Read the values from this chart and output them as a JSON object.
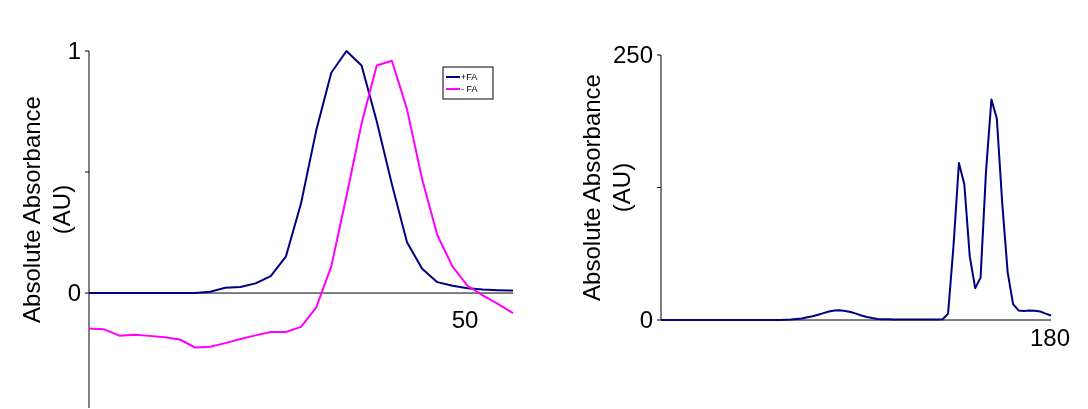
{
  "chart_data": [
    {
      "type": "line",
      "ylabel": "Absolute Absorbance\n(AU)",
      "categories": [
        null,
        null,
        null,
        null,
        null,
        null,
        null,
        null,
        null,
        null,
        null,
        null,
        null,
        null,
        null,
        null,
        null,
        null,
        null,
        null,
        null,
        null,
        null,
        null,
        null,
        null,
        null,
        null,
        null
      ],
      "ylim": [
        -0.475,
        1
      ],
      "yticks": [
        0,
        {
          "value": 0.5,
          "label": null
        },
        1
      ],
      "legend": "top right",
      "annotations": [
        "50"
      ],
      "series": [
        {
          "name": "+FA",
          "color": "#000080",
          "values": [
            0,
            0,
            0,
            0,
            0,
            0,
            0,
            0,
            0.005,
            0.022,
            0.025,
            0.04,
            0.07,
            0.15,
            0.37,
            0.67,
            0.91,
            1.0,
            0.94,
            0.71,
            0.45,
            0.21,
            0.1,
            0.045,
            0.03,
            0.02,
            0.015,
            0.012,
            0.01
          ]
        },
        {
          "name": "- FA",
          "color": "#ff00ff",
          "values": [
            -0.147,
            -0.15,
            -0.176,
            -0.172,
            -0.177,
            -0.183,
            -0.192,
            -0.225,
            -0.222,
            -0.207,
            -0.19,
            -0.175,
            -0.161,
            -0.161,
            -0.14,
            -0.06,
            0.11,
            0.4,
            0.7,
            0.94,
            0.96,
            0.76,
            0.47,
            0.24,
            0.11,
            0.03,
            -0.01,
            -0.045,
            -0.083
          ]
        }
      ]
    },
    {
      "type": "line",
      "ylabel": "Absolute Absorbance\n(AU)",
      "categories": [
        null,
        null,
        null,
        null,
        null,
        null,
        null,
        null,
        null,
        null,
        null,
        null,
        null,
        null,
        null,
        null,
        null,
        null,
        null,
        null,
        null,
        null,
        null,
        null,
        null,
        null,
        null,
        null,
        null,
        null,
        null,
        null,
        null,
        null,
        null,
        null,
        null,
        null,
        null,
        null,
        null,
        null,
        null,
        null,
        null,
        null,
        null,
        null,
        null,
        null,
        null,
        null,
        null,
        null,
        null,
        null,
        null,
        null,
        null,
        null,
        null,
        null,
        null,
        null,
        null,
        null,
        null,
        null,
        null,
        null,
        null,
        null,
        null
      ],
      "ylim": [
        0,
        250
      ],
      "yticks": [
        0,
        {
          "value": 125,
          "label": null
        },
        250
      ],
      "annotations": [
        "180"
      ],
      "series": [
        {
          "color": "#000080",
          "values": [
            0,
            0,
            0,
            0,
            0,
            0,
            0,
            0,
            0,
            0,
            0,
            0,
            0,
            0,
            0,
            0,
            0,
            0,
            0,
            0,
            0,
            0,
            0,
            0.2,
            0.5,
            1,
            1.5,
            2.5,
            3.5,
            5,
            6.5,
            8,
            9,
            9.2,
            8.5,
            7.5,
            6,
            4.3,
            2.8,
            1.8,
            1,
            0.7,
            0.6,
            0.5,
            0.5,
            0.5,
            0.5,
            0.5,
            0.5,
            0.5,
            0.5,
            0.5,
            0.7,
            6,
            70,
            148,
            128,
            60,
            30,
            40,
            140,
            208,
            190,
            110,
            45,
            15,
            9,
            8.5,
            9,
            8.8,
            8,
            6,
            4.3
          ]
        }
      ]
    }
  ]
}
